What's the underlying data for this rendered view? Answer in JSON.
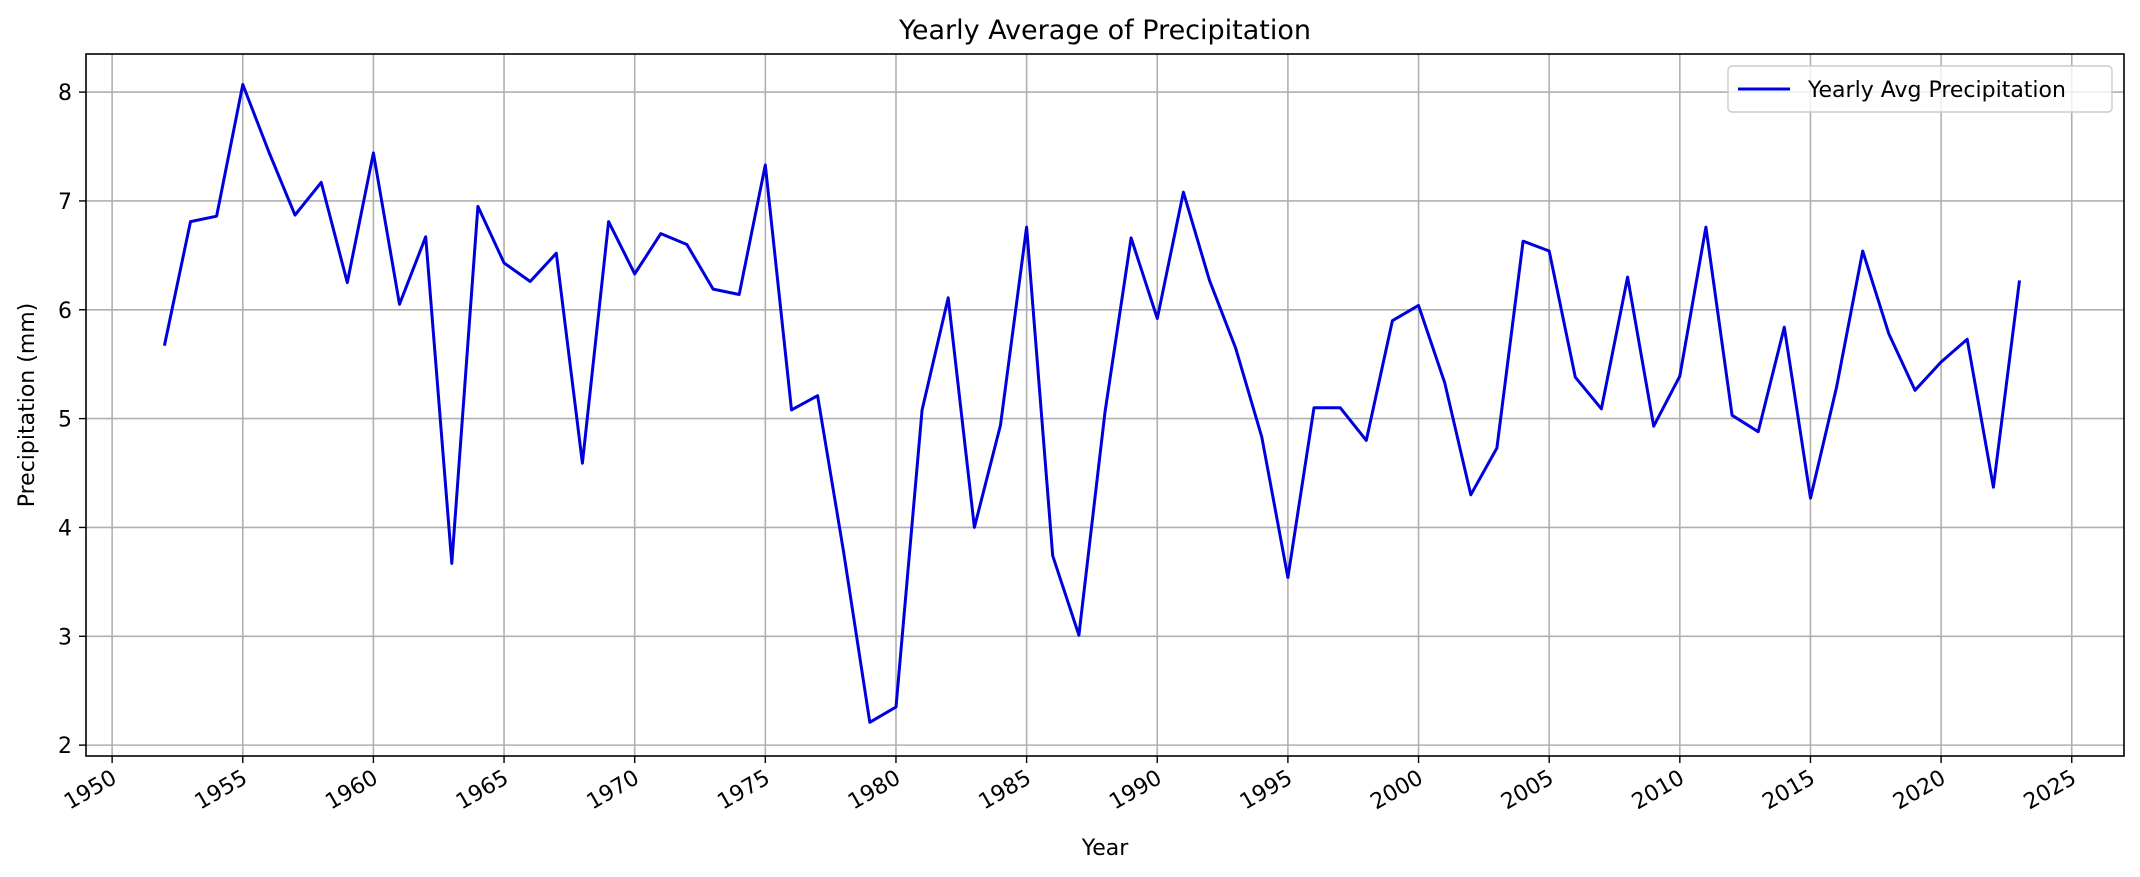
{
  "chart_data": {
    "type": "line",
    "title": "Yearly Average of Precipitation",
    "xlabel": "Year",
    "ylabel": "Precipitation (mm)",
    "xlim": [
      1949,
      2027
    ],
    "ylim": [
      1.9,
      8.35
    ],
    "xticks": [
      1950,
      1955,
      1960,
      1965,
      1970,
      1975,
      1980,
      1985,
      1990,
      1995,
      2000,
      2005,
      2010,
      2015,
      2020,
      2025
    ],
    "yticks": [
      2,
      3,
      4,
      5,
      6,
      7,
      8
    ],
    "grid": true,
    "legend_position": "top-right",
    "series": [
      {
        "name": "Yearly Avg Precipitation",
        "color": "#0000dd",
        "x": [
          1952,
          1953,
          1954,
          1955,
          1956,
          1957,
          1958,
          1959,
          1960,
          1961,
          1962,
          1963,
          1964,
          1965,
          1966,
          1967,
          1968,
          1969,
          1970,
          1971,
          1972,
          1973,
          1974,
          1975,
          1976,
          1977,
          1978,
          1979,
          1980,
          1981,
          1982,
          1983,
          1984,
          1985,
          1986,
          1987,
          1988,
          1989,
          1990,
          1991,
          1992,
          1993,
          1994,
          1995,
          1996,
          1997,
          1998,
          1999,
          2000,
          2001,
          2002,
          2003,
          2004,
          2005,
          2006,
          2007,
          2008,
          2009,
          2010,
          2011,
          2012,
          2013,
          2014,
          2015,
          2016,
          2017,
          2018,
          2019,
          2020,
          2021,
          2022,
          2023
        ],
        "values": [
          5.67,
          6.81,
          6.86,
          8.07,
          7.45,
          6.87,
          7.17,
          6.25,
          7.44,
          6.05,
          6.67,
          3.67,
          6.95,
          6.43,
          6.26,
          6.52,
          4.59,
          6.81,
          6.33,
          6.7,
          6.6,
          6.19,
          6.14,
          7.33,
          5.08,
          5.21,
          3.77,
          2.21,
          2.35,
          5.08,
          6.11,
          4.0,
          4.94,
          6.76,
          3.74,
          3.01,
          5.06,
          6.66,
          5.92,
          7.08,
          6.27,
          5.65,
          4.83,
          3.54,
          5.1,
          5.1,
          4.8,
          5.9,
          6.04,
          5.33,
          4.3,
          4.73,
          6.63,
          6.54,
          5.38,
          5.09,
          6.3,
          4.93,
          5.39,
          6.76,
          5.03,
          4.88,
          5.84,
          4.27,
          5.29,
          6.54,
          5.78,
          5.26,
          5.52,
          5.73,
          4.37,
          6.27
        ]
      }
    ]
  }
}
